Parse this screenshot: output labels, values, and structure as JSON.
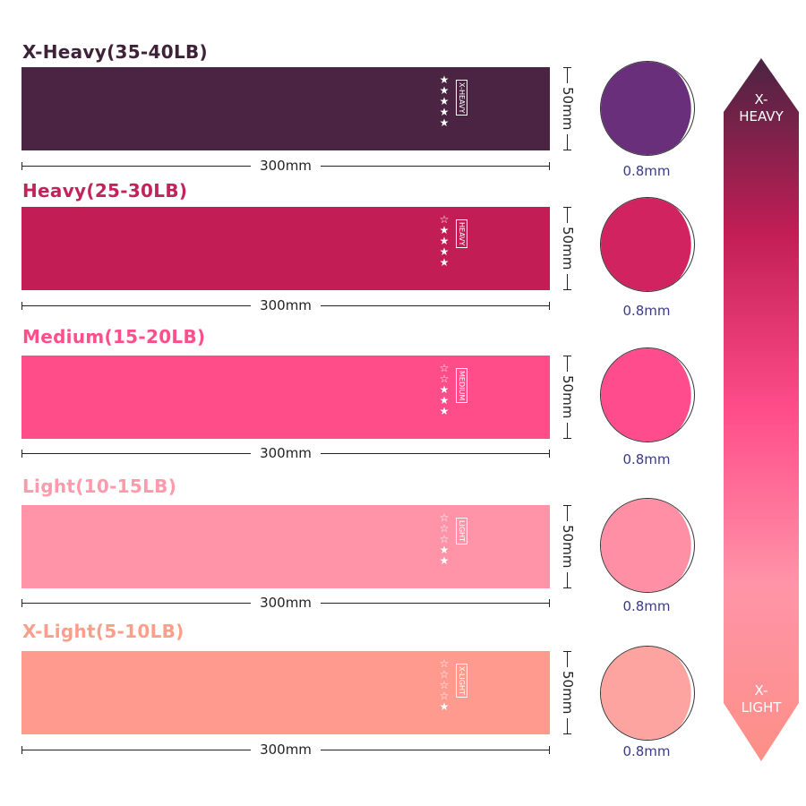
{
  "bands": [
    {
      "title": "X-Heavy(35-40LB)",
      "label": "X-HEAVY",
      "stars_filled": 5,
      "color": "#4a2442",
      "title_color": "#3e2239",
      "circle_color": "#6a2f7a",
      "width": "300mm",
      "height": "50mm",
      "thickness": "0.8mm"
    },
    {
      "title": "Heavy(25-30LB)",
      "label": "HEAVY",
      "stars_filled": 4,
      "color": "#c21e55",
      "title_color": "#c2245a",
      "circle_color": "#d0235f",
      "width": "300mm",
      "height": "50mm",
      "thickness": "0.8mm"
    },
    {
      "title": "Medium(15-20LB)",
      "label": "MEDIUM",
      "stars_filled": 3,
      "color": "#ff4d8a",
      "title_color": "#ff4f8b",
      "circle_color": "#ff4c8d",
      "width": "300mm",
      "height": "50mm",
      "thickness": "0.8mm"
    },
    {
      "title": "Light(10-15LB)",
      "label": "LIGHT",
      "stars_filled": 2,
      "color": "#ff94a8",
      "title_color": "#ff9aac",
      "circle_color": "#ff8fa4",
      "width": "300mm",
      "height": "50mm",
      "thickness": "0.8mm"
    },
    {
      "title": "X-Light(5-10LB)",
      "label": "X-LIGHT",
      "stars_filled": 1,
      "color": "#fe9a8e",
      "title_color": "#fb9f8a",
      "circle_color": "#fda3a0",
      "width": "300mm",
      "height": "50mm",
      "thickness": "0.8mm"
    }
  ],
  "scale": {
    "top_label": "X-\nHEAVY",
    "bottom_label": "X-\nLIGHT",
    "top_line1": "X-",
    "top_line2": "HEAVY",
    "bottom_line1": "X-",
    "bottom_line2": "LIGHT"
  }
}
